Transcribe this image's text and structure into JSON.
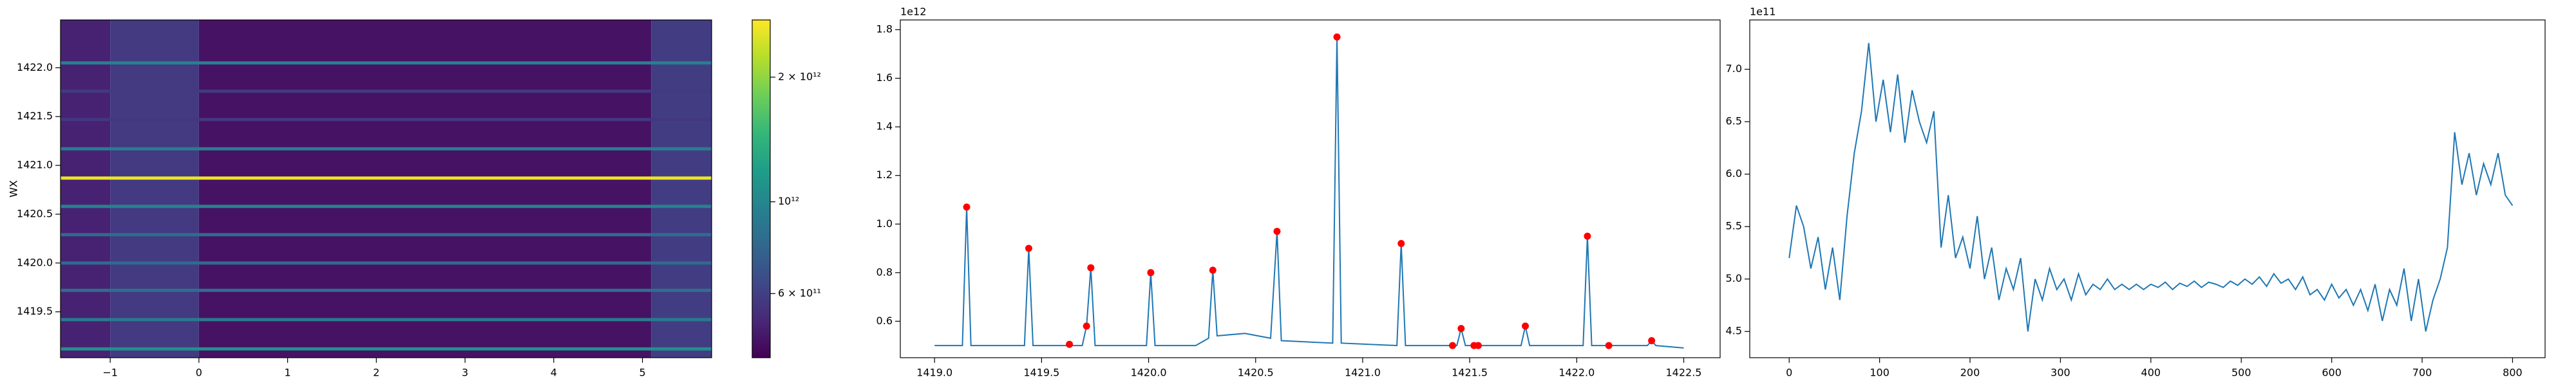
{
  "chart_data": [
    {
      "type": "heatmap",
      "ylabel": "WX",
      "xlim": [
        -1.56,
        5.78
      ],
      "ylim": [
        1419.03,
        1422.49
      ],
      "xticks": [
        {
          "value": -1,
          "label": "−1"
        },
        0,
        1,
        2,
        3,
        4,
        5
      ],
      "yticks": [
        1419.5,
        {
          "value": 1420.0,
          "label": "1420.0"
        },
        1420.5,
        {
          "value": 1421.0,
          "label": "1421.0"
        },
        1421.5,
        {
          "value": 1422.0,
          "label": "1422.0"
        }
      ],
      "columns": {
        "edges": [
          -1.56,
          -1.0,
          0.0,
          5.1,
          5.78
        ],
        "values": [
          500000000000,
          580000000000,
          460000000000,
          590000000000
        ]
      },
      "lines": {
        "y": [
          1419.12,
          1419.42,
          1419.72,
          1420.0,
          1420.29,
          1420.58,
          1420.87,
          1421.17,
          1421.47,
          1421.76,
          1422.05
        ],
        "values": [
          1070000000000,
          900000000000,
          820000000000,
          800000000000,
          810000000000,
          970000000000,
          2600000000000,
          920000000000,
          570000000000,
          580000000000,
          950000000000
        ]
      },
      "colorbar": {
        "log": true,
        "lim": [
          420000000000,
          2750000000000
        ],
        "ticks": [
          {
            "value": 600000000000,
            "label": "6 × 10¹¹"
          },
          {
            "value": 1000000000000,
            "label": "10¹²"
          },
          {
            "value": 2000000000000,
            "label": "2 × 10¹²"
          }
        ]
      }
    },
    {
      "type": "line",
      "offset_label": "1e12",
      "color": "#1f77b4",
      "xlim": [
        1418.84,
        1422.67
      ],
      "ylim": [
        0.45,
        1.84
      ],
      "xticks": [
        {
          "value": 1419.0,
          "label": "1419.0"
        },
        1419.5,
        {
          "value": 1420.0,
          "label": "1420.0"
        },
        1420.5,
        {
          "value": 1421.0,
          "label": "1421.0"
        },
        1421.5,
        {
          "value": 1422.0,
          "label": "1422.0"
        },
        1422.5
      ],
      "yticks": [
        0.6,
        0.8,
        {
          "value": 1.0,
          "label": "1.0"
        },
        1.2,
        1.4,
        1.6,
        1.8
      ],
      "x": [
        1419.0,
        1419.13,
        1419.15,
        1419.17,
        1419.42,
        1419.44,
        1419.46,
        1419.69,
        1419.71,
        1419.73,
        1419.75,
        1419.99,
        1420.01,
        1420.03,
        1420.22,
        1420.28,
        1420.3,
        1420.32,
        1420.45,
        1420.57,
        1420.6,
        1420.62,
        1420.86,
        1420.88,
        1420.9,
        1421.16,
        1421.18,
        1421.2,
        1421.44,
        1421.46,
        1421.48,
        1421.74,
        1421.76,
        1421.78,
        1422.03,
        1422.05,
        1422.07,
        1422.33,
        1422.35,
        1422.37,
        1422.5
      ],
      "values": [
        0.5,
        0.5,
        1.07,
        0.5,
        0.5,
        0.9,
        0.5,
        0.5,
        0.58,
        0.82,
        0.5,
        0.5,
        0.8,
        0.5,
        0.5,
        0.53,
        0.81,
        0.54,
        0.55,
        0.53,
        0.97,
        0.52,
        0.51,
        1.77,
        0.51,
        0.5,
        0.92,
        0.5,
        0.5,
        0.57,
        0.5,
        0.5,
        0.58,
        0.5,
        0.5,
        0.95,
        0.5,
        0.5,
        0.52,
        0.5,
        0.49
      ],
      "markers": {
        "color": "#ff0000",
        "x": [
          1419.15,
          1419.44,
          1419.63,
          1419.71,
          1419.73,
          1420.01,
          1420.3,
          1420.6,
          1420.88,
          1421.18,
          1421.42,
          1421.46,
          1421.52,
          1421.54,
          1421.76,
          1422.05,
          1422.15,
          1422.35
        ],
        "values": [
          1.07,
          0.9,
          0.505,
          0.58,
          0.82,
          0.8,
          0.81,
          0.97,
          1.77,
          0.92,
          0.5,
          0.57,
          0.5,
          0.5,
          0.58,
          0.95,
          0.5,
          0.52
        ]
      }
    },
    {
      "type": "line",
      "offset_label": "1e11",
      "color": "#1f77b4",
      "xlim": [
        -43.6,
        836
      ],
      "ylim": [
        4.25,
        7.47
      ],
      "xticks": [
        0,
        100,
        200,
        300,
        400,
        500,
        600,
        700,
        800
      ],
      "yticks": [
        4.5,
        {
          "value": 5.0,
          "label": "5.0"
        },
        5.5,
        {
          "value": 6.0,
          "label": "6.0"
        },
        6.5,
        {
          "value": 7.0,
          "label": "7.0"
        }
      ],
      "x": [
        0,
        8,
        16,
        24,
        32,
        40,
        48,
        56,
        64,
        72,
        80,
        88,
        96,
        104,
        112,
        120,
        128,
        136,
        144,
        152,
        160,
        168,
        176,
        184,
        192,
        200,
        208,
        216,
        224,
        232,
        240,
        248,
        256,
        264,
        272,
        280,
        288,
        296,
        304,
        312,
        320,
        328,
        336,
        344,
        352,
        360,
        368,
        376,
        384,
        392,
        400,
        408,
        416,
        424,
        432,
        440,
        448,
        456,
        464,
        472,
        480,
        488,
        496,
        504,
        512,
        520,
        528,
        536,
        544,
        552,
        560,
        568,
        576,
        584,
        592,
        600,
        608,
        616,
        624,
        632,
        640,
        648,
        656,
        664,
        672,
        680,
        688,
        696,
        704,
        712,
        720,
        728,
        736,
        744,
        752,
        760,
        768,
        776,
        784,
        792,
        800
      ],
      "values": [
        5.2,
        5.7,
        5.5,
        5.1,
        5.4,
        4.9,
        5.3,
        4.8,
        5.6,
        6.2,
        6.6,
        7.25,
        6.5,
        6.9,
        6.4,
        6.95,
        6.3,
        6.8,
        6.5,
        6.3,
        6.6,
        5.3,
        5.8,
        5.2,
        5.4,
        5.1,
        5.6,
        5.0,
        5.3,
        4.8,
        5.1,
        4.9,
        5.2,
        4.5,
        5.0,
        4.8,
        5.1,
        4.9,
        5.0,
        4.8,
        5.05,
        4.85,
        4.95,
        4.9,
        5.0,
        4.9,
        4.95,
        4.9,
        4.95,
        4.9,
        4.95,
        4.92,
        4.97,
        4.9,
        4.96,
        4.93,
        4.98,
        4.92,
        4.97,
        4.95,
        4.92,
        4.98,
        4.94,
        5.0,
        4.95,
        5.02,
        4.93,
        5.05,
        4.96,
        5.0,
        4.9,
        5.02,
        4.85,
        4.9,
        4.8,
        4.95,
        4.82,
        4.9,
        4.75,
        4.9,
        4.7,
        4.95,
        4.6,
        4.9,
        4.75,
        5.1,
        4.6,
        5.0,
        4.5,
        4.8,
        5.0,
        5.3,
        6.4,
        5.9,
        6.2,
        5.8,
        6.1,
        5.9,
        6.2,
        5.8,
        5.7
      ]
    }
  ]
}
